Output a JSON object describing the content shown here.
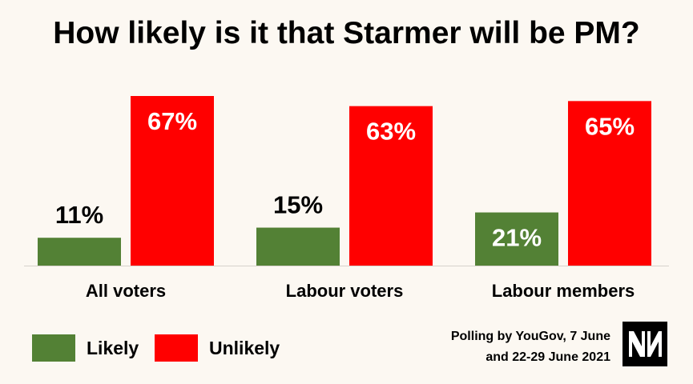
{
  "chart_data": {
    "type": "bar",
    "title": "How likely is it that Starmer will be PM?",
    "categories": [
      "All voters",
      "Labour voters",
      "Labour members"
    ],
    "series": [
      {
        "name": "Likely",
        "values": [
          11,
          15,
          21
        ],
        "labels": [
          "11%",
          "15%",
          "21%"
        ],
        "color": "#538135"
      },
      {
        "name": "Unlikely",
        "values": [
          67,
          63,
          65
        ],
        "labels": [
          "67%",
          "63%",
          "65%"
        ],
        "color": "#ff0000"
      }
    ],
    "ylim": [
      0,
      67
    ],
    "grid": false,
    "legend_position": "bottom-left"
  },
  "source": {
    "line1": "Polling by YouGov, 7 June",
    "line2": "and 22-29 June 2021"
  },
  "logo": {
    "icon": "newstatesman-logo-icon"
  }
}
